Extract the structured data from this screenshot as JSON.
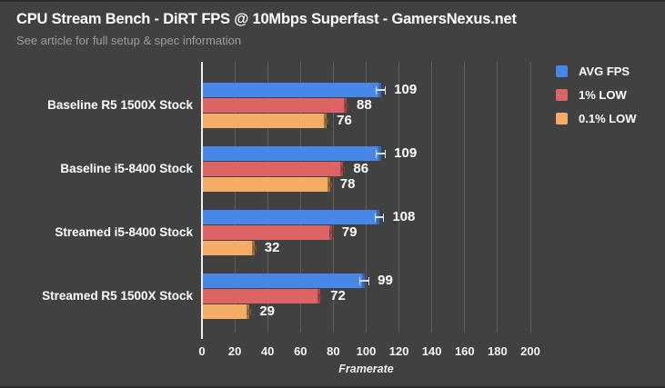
{
  "header": {
    "title": "CPU Stream Bench - DiRT FPS @ 10Mbps Superfast - GamersNexus.net",
    "subtitle": "See article for full setup & spec information"
  },
  "chart_data": {
    "type": "bar",
    "orientation": "horizontal",
    "title": "CPU Stream Bench - DiRT FPS @ 10Mbps Superfast - GamersNexus.net",
    "subtitle": "See article for full setup & spec information",
    "categories": [
      "Baseline R5 1500X Stock",
      "Baseline i5-8400 Stock",
      "Streamed i5-8400 Stock",
      "Streamed R5 1500X Stock"
    ],
    "series": [
      {
        "name": "AVG FPS",
        "color": "#4687e7",
        "edge_color": "#3567c2",
        "whisker_color": "#d9e3f8",
        "error": 3,
        "values": [
          109,
          109,
          108,
          99
        ]
      },
      {
        "name": "1% LOW",
        "color": "#dc6464",
        "edge_color": "#a94a48",
        "whisker_color": "#7c3836",
        "error": 1.2,
        "values": [
          88,
          86,
          79,
          72
        ]
      },
      {
        "name": "0.1% LOW",
        "color": "#f5ad65",
        "edge_color": "#a5703a",
        "whisker_color": "#7c5a2e",
        "error": 0.8,
        "values": [
          76,
          78,
          32,
          29
        ]
      }
    ],
    "xlabel": "Framerate",
    "ylabel": "",
    "xlim": [
      0,
      200
    ],
    "xticks": [
      0,
      20,
      40,
      60,
      80,
      100,
      120,
      140,
      160,
      180,
      200
    ],
    "grid": true,
    "legend_position": "top-right",
    "data_labels": true
  },
  "colors": {
    "background": "#414141",
    "gridline": "#5e5e5e",
    "axis_line": "#f0f0f0",
    "title_text": "#ffffff",
    "subtitle_text": "#9d9d9d",
    "label_text": "#ffffff"
  }
}
